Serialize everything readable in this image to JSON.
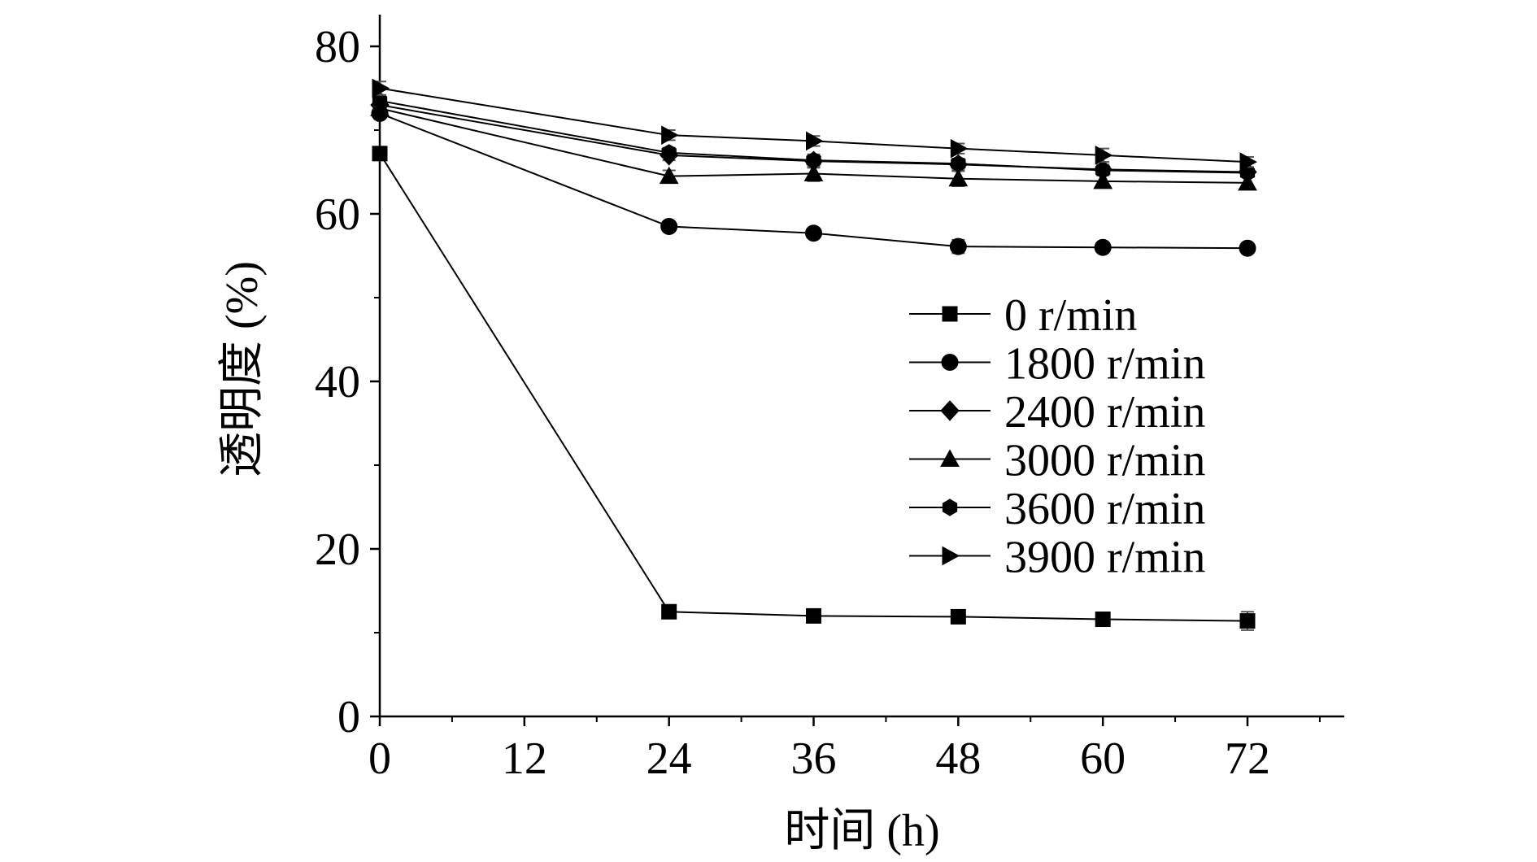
{
  "chart_data": {
    "type": "line",
    "title": "",
    "xlabel": "时间 (h)",
    "ylabel": "透明度 (%)",
    "xlim": [
      0,
      80
    ],
    "ylim": [
      0,
      84
    ],
    "x_ticks": [
      0,
      12,
      24,
      36,
      48,
      60,
      72
    ],
    "y_ticks": [
      0,
      20,
      40,
      60,
      80
    ],
    "grid": false,
    "legend_position": "center-right",
    "x": [
      0,
      24,
      36,
      48,
      60,
      72
    ],
    "series": [
      {
        "name": "0 r/min",
        "marker": "square",
        "values": [
          67.2,
          12.5,
          12.0,
          11.9,
          11.6,
          11.4
        ],
        "errors": [
          0.6,
          0.6,
          0.6,
          0.6,
          0.7,
          1.1
        ]
      },
      {
        "name": "1800 r/min",
        "marker": "circle",
        "values": [
          72.0,
          58.5,
          57.7,
          56.1,
          56.0,
          55.9
        ],
        "errors": [
          0.5,
          0.5,
          0.5,
          0.8,
          0.5,
          0.5
        ]
      },
      {
        "name": "2400 r/min",
        "marker": "diamond",
        "values": [
          73.0,
          67.0,
          66.3,
          65.9,
          65.3,
          65.0
        ],
        "errors": [
          0.6,
          0.6,
          0.8,
          0.7,
          0.6,
          0.5
        ]
      },
      {
        "name": "3000 r/min",
        "marker": "triangle-up",
        "values": [
          72.6,
          64.5,
          64.8,
          64.2,
          63.9,
          63.7
        ],
        "errors": [
          0.6,
          0.7,
          0.9,
          0.9,
          0.7,
          0.7
        ]
      },
      {
        "name": "3600 r/min",
        "marker": "hexagon",
        "values": [
          73.5,
          67.3,
          66.4,
          66.0,
          65.2,
          64.9
        ],
        "errors": [
          0.6,
          0.6,
          0.7,
          0.6,
          0.6,
          0.5
        ]
      },
      {
        "name": "3900 r/min",
        "marker": "triangle-right",
        "values": [
          75.0,
          69.4,
          68.7,
          67.8,
          67.0,
          66.2
        ],
        "errors": [
          0.8,
          0.6,
          0.6,
          0.6,
          0.8,
          0.6
        ]
      }
    ]
  }
}
